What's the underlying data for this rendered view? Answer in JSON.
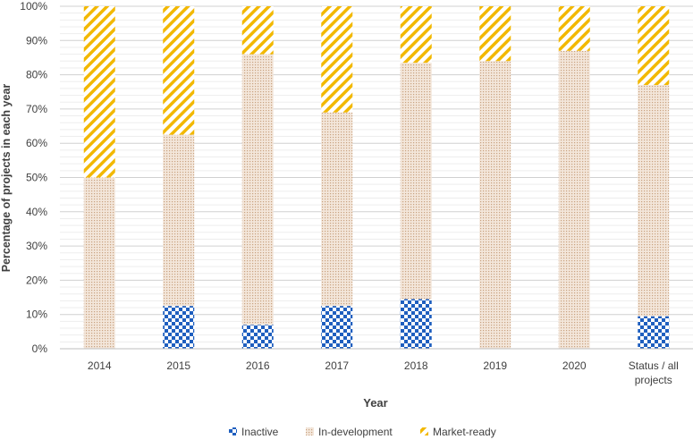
{
  "chart_data": {
    "type": "bar",
    "stacked": true,
    "percent": true,
    "categories": [
      "2014",
      "2015",
      "2016",
      "2017",
      "2018",
      "2019",
      "2020",
      "Status / all projects"
    ],
    "category_lines": [
      [
        "2014"
      ],
      [
        "2015"
      ],
      [
        "2016"
      ],
      [
        "2017"
      ],
      [
        "2018"
      ],
      [
        "2019"
      ],
      [
        "2020"
      ],
      [
        "Status / all",
        "projects"
      ]
    ],
    "series": [
      {
        "name": "Inactive",
        "values": [
          0,
          12.5,
          7,
          12.5,
          14.5,
          0,
          0,
          9.5
        ],
        "color": "#1f5fbf",
        "pattern": "checkerboard"
      },
      {
        "name": "In-development",
        "values": [
          50,
          50,
          79,
          56.5,
          69,
          84,
          87,
          67.5
        ],
        "color": "#d9b89a",
        "pattern": "dots"
      },
      {
        "name": "Market-ready",
        "values": [
          50,
          37.5,
          14,
          31,
          16.5,
          16,
          13,
          23
        ],
        "color": "#f2b800",
        "pattern": "diagonal-stripes"
      }
    ],
    "y_ticks": [
      "0%",
      "10%",
      "20%",
      "30%",
      "40%",
      "50%",
      "60%",
      "70%",
      "80%",
      "90%",
      "100%"
    ],
    "ylim": [
      0,
      100
    ],
    "xlabel": "Year",
    "ylabel": "Percentage of projects in each year",
    "grid": true,
    "legend_position": "bottom"
  }
}
